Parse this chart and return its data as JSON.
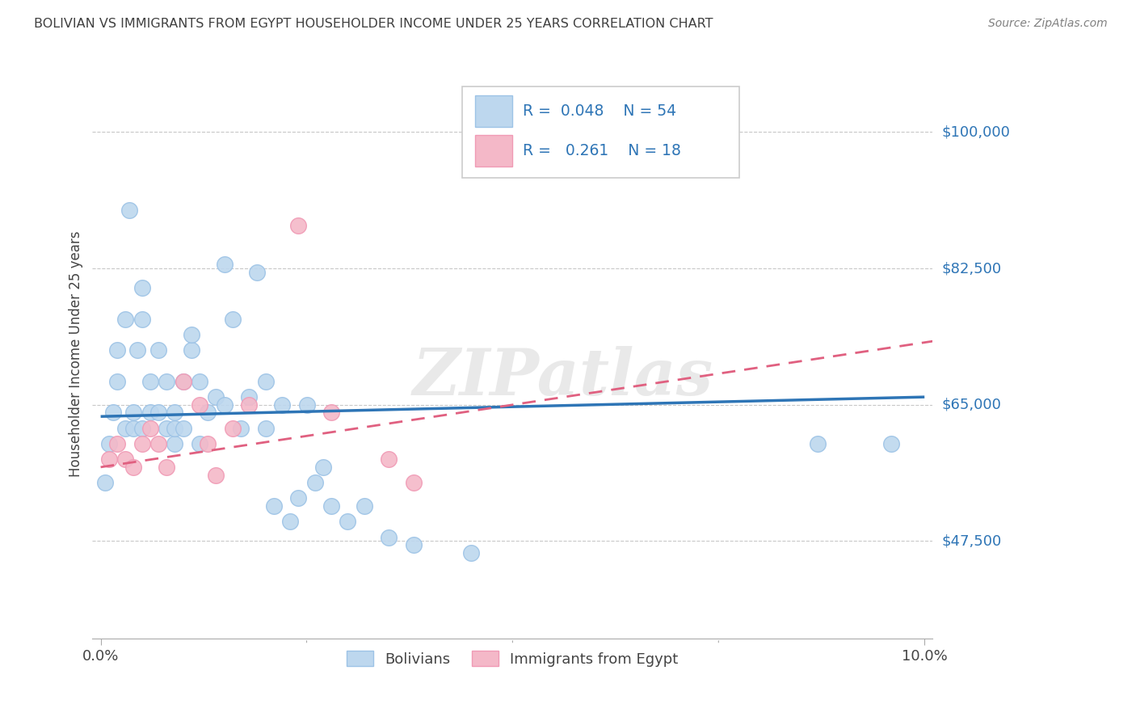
{
  "title": "BOLIVIAN VS IMMIGRANTS FROM EGYPT HOUSEHOLDER INCOME UNDER 25 YEARS CORRELATION CHART",
  "source": "Source: ZipAtlas.com",
  "ylabel": "Householder Income Under 25 years",
  "xmin": 0.0,
  "xmax": 0.1,
  "ymin": 35000,
  "ymax": 108000,
  "yticks": [
    47500,
    65000,
    82500,
    100000
  ],
  "ytick_labels": [
    "$47,500",
    "$65,000",
    "$82,500",
    "$100,000"
  ],
  "watermark": "ZIPatlas",
  "blue_scatter_fill": "#bdd7ee",
  "blue_scatter_edge": "#9dc3e6",
  "blue_line_color": "#2e75b6",
  "pink_scatter_fill": "#f4b8c8",
  "pink_scatter_edge": "#f09ab5",
  "pink_line_color": "#e06080",
  "legend_text_color": "#2e75b6",
  "grid_color": "#c8c8c8",
  "title_color": "#404040",
  "ytick_color": "#2e75b6",
  "source_color": "#808080",
  "bolivians_x": [
    0.0005,
    0.001,
    0.0015,
    0.002,
    0.002,
    0.003,
    0.003,
    0.0035,
    0.004,
    0.004,
    0.0045,
    0.005,
    0.005,
    0.005,
    0.006,
    0.006,
    0.007,
    0.007,
    0.008,
    0.008,
    0.009,
    0.009,
    0.009,
    0.01,
    0.01,
    0.011,
    0.011,
    0.012,
    0.012,
    0.013,
    0.014,
    0.015,
    0.015,
    0.016,
    0.017,
    0.018,
    0.019,
    0.02,
    0.02,
    0.021,
    0.022,
    0.023,
    0.024,
    0.025,
    0.026,
    0.027,
    0.028,
    0.03,
    0.032,
    0.035,
    0.038,
    0.045,
    0.087,
    0.096
  ],
  "bolivians_y": [
    55000,
    60000,
    64000,
    68000,
    72000,
    62000,
    76000,
    90000,
    62000,
    64000,
    72000,
    62000,
    76000,
    80000,
    64000,
    68000,
    64000,
    72000,
    62000,
    68000,
    60000,
    62000,
    64000,
    62000,
    68000,
    72000,
    74000,
    60000,
    68000,
    64000,
    66000,
    65000,
    83000,
    76000,
    62000,
    66000,
    82000,
    62000,
    68000,
    52000,
    65000,
    50000,
    53000,
    65000,
    55000,
    57000,
    52000,
    50000,
    52000,
    48000,
    47000,
    46000,
    60000,
    60000
  ],
  "egypt_x": [
    0.001,
    0.002,
    0.003,
    0.004,
    0.005,
    0.006,
    0.007,
    0.008,
    0.01,
    0.012,
    0.013,
    0.014,
    0.016,
    0.018,
    0.024,
    0.028,
    0.035,
    0.038
  ],
  "egypt_y": [
    58000,
    60000,
    58000,
    57000,
    60000,
    62000,
    60000,
    57000,
    68000,
    65000,
    60000,
    56000,
    62000,
    65000,
    88000,
    64000,
    58000,
    55000
  ]
}
